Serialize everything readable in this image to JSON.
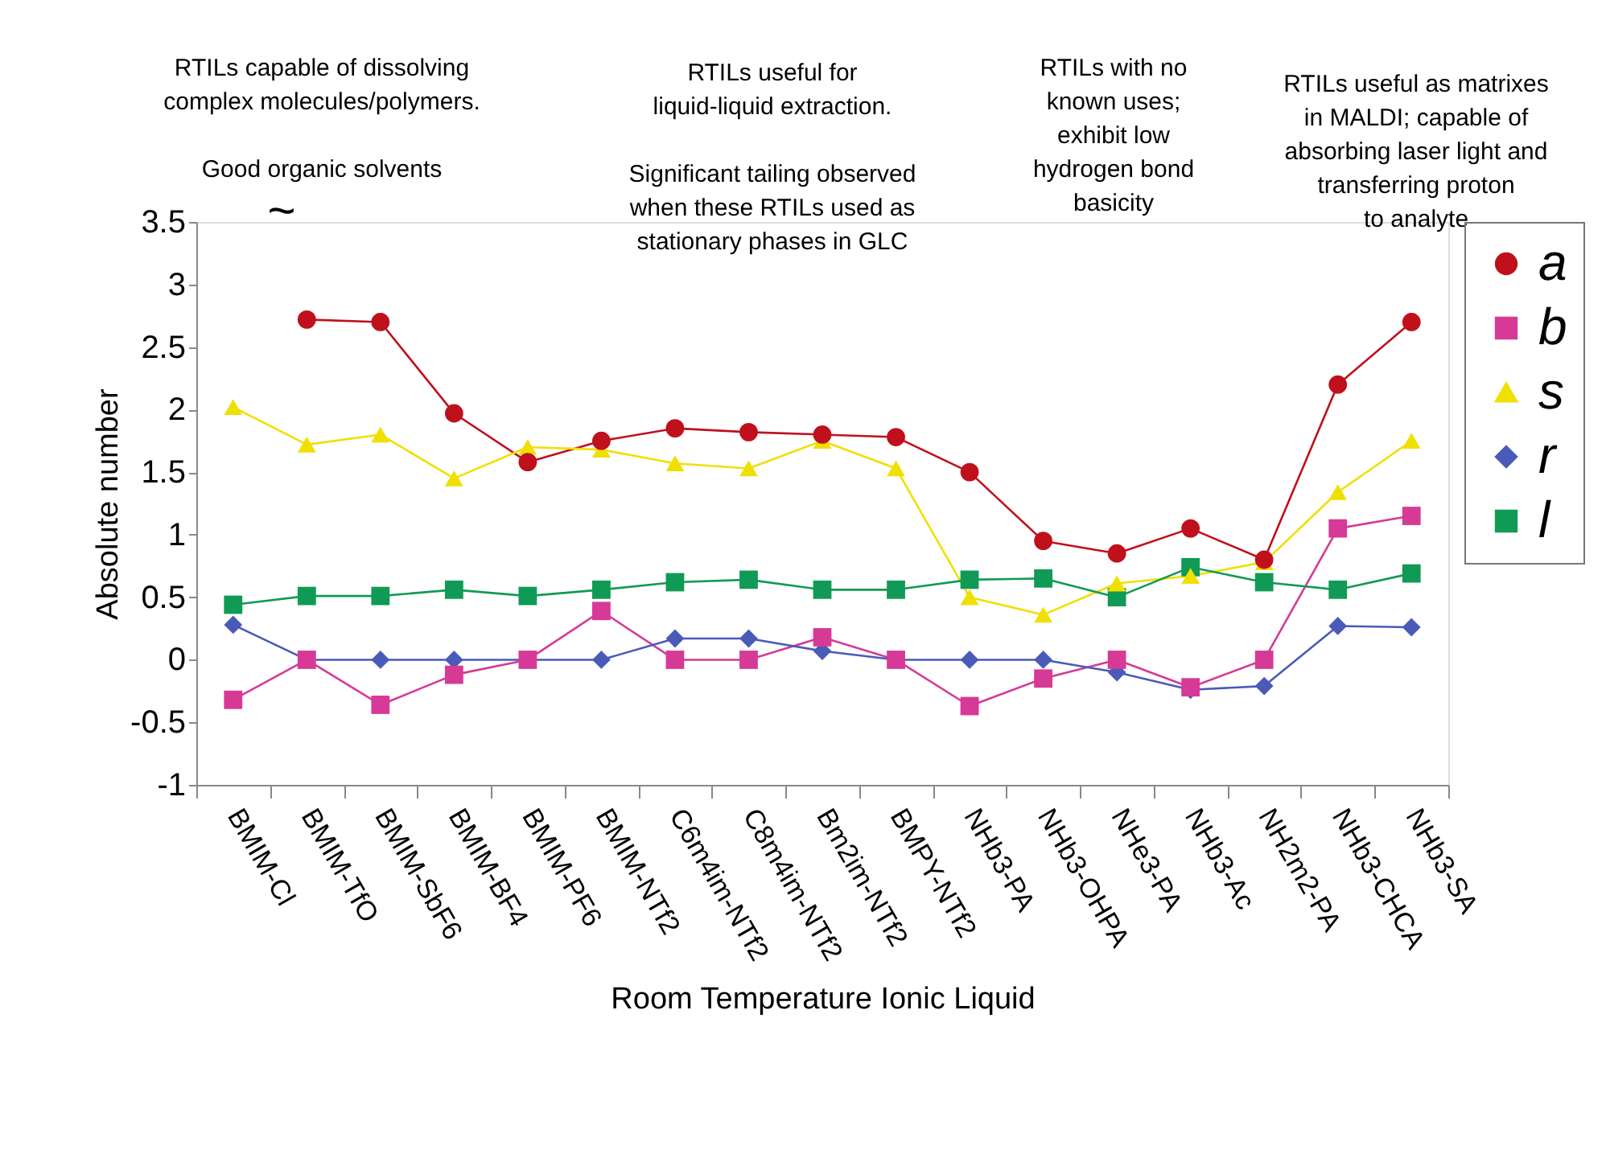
{
  "chart_data": {
    "type": "line",
    "xlabel": "Room Temperature Ionic Liquid",
    "ylabel": "Absolute number",
    "categories": [
      "BMIM-Cl",
      "BMIM-TfO",
      "BMIM-SbF6",
      "BMIM-BF4",
      "BMIM-PF6",
      "BMIM-NTf2",
      "C6m4im-NTf2",
      "C8m4im-NTf2",
      "Bm2im-NTf2",
      "BMPY-NTf2",
      "NHb3-PA",
      "NHb3-OHPA",
      "NHe3-PA",
      "NHb3-Ac",
      "NH2m2-PA",
      "NHb3-CHCA",
      "NHb3-SA"
    ],
    "series": [
      {
        "name": "a",
        "color": "#c0101c",
        "marker": "circle",
        "values": [
          null,
          2.72,
          2.7,
          1.97,
          1.58,
          1.75,
          1.85,
          1.82,
          1.8,
          1.78,
          1.5,
          0.95,
          0.85,
          1.05,
          0.8,
          2.2,
          2.7
        ]
      },
      {
        "name": "b",
        "color": "#d63a96",
        "marker": "square",
        "values": [
          -0.32,
          0,
          -0.36,
          -0.12,
          0,
          0.39,
          0,
          0,
          0.18,
          0,
          -0.37,
          -0.15,
          0,
          -0.22,
          0,
          1.05,
          1.15
        ]
      },
      {
        "name": "s",
        "color": "#f0e000",
        "marker": "triangle",
        "values": [
          2.02,
          1.72,
          1.8,
          1.45,
          1.7,
          1.68,
          1.57,
          1.53,
          1.75,
          1.53,
          0.5,
          0.36,
          0.61,
          0.67,
          0.78,
          1.34,
          1.75
        ]
      },
      {
        "name": "r",
        "color": "#4a5ab8",
        "marker": "diamond",
        "values": [
          0.28,
          0,
          0,
          0,
          0,
          0,
          0.17,
          0.17,
          0.07,
          0,
          0,
          0,
          -0.1,
          -0.24,
          -0.21,
          0.27,
          0.26
        ]
      },
      {
        "name": "l",
        "color": "#119a55",
        "marker": "square",
        "values": [
          0.44,
          0.51,
          0.51,
          0.56,
          0.51,
          0.56,
          0.62,
          0.64,
          0.56,
          0.56,
          0.64,
          0.65,
          0.5,
          0.74,
          0.62,
          0.56,
          0.69
        ]
      }
    ],
    "ylim": [
      -1,
      3.5
    ],
    "yticks": [
      -1,
      -0.5,
      0,
      0.5,
      1,
      1.5,
      2,
      2.5,
      3,
      3.5
    ],
    "grid": false,
    "legend": "right",
    "annotations": [
      "RTILs capable of dissolving\ncomplex molecules/polymers.\n\nGood organic solvents",
      "RTILs useful for\nliquid-liquid extraction.\n\nSignificant tailing observed\nwhen these RTILs used as\nstationary phases in GLC",
      "RTILs with no\nknown uses;\nexhibit low\nhydrogen bond\nbasicity",
      "RTILs useful as matrixes\nin MALDI; capable of\nabsorbing laser light and\ntransferring proton\nto analyte",
      "~"
    ]
  }
}
